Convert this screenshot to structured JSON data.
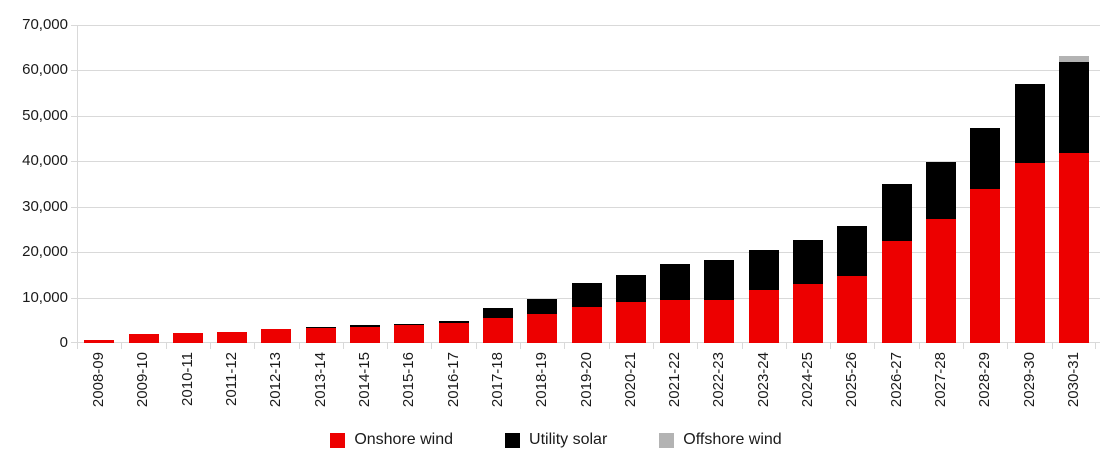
{
  "chart_data": {
    "type": "bar",
    "stacked": true,
    "title": "",
    "xlabel": "",
    "ylabel": "",
    "ylim": [
      0,
      70000
    ],
    "ytick_step": 10000,
    "grid": true,
    "legend_position": "bottom",
    "y_ticks": [
      {
        "value": 0,
        "label": "0"
      },
      {
        "value": 10000,
        "label": "10,000"
      },
      {
        "value": 20000,
        "label": "20,000"
      },
      {
        "value": 30000,
        "label": "30,000"
      },
      {
        "value": 40000,
        "label": "40,000"
      },
      {
        "value": 50000,
        "label": "50,000"
      },
      {
        "value": 60000,
        "label": "60,000"
      },
      {
        "value": 70000,
        "label": "70,000"
      }
    ],
    "categories": [
      "2008-09",
      "2009-10",
      "2010-11",
      "2011-12",
      "2012-13",
      "2013-14",
      "2014-15",
      "2015-16",
      "2016-17",
      "2017-18",
      "2018-19",
      "2019-20",
      "2020-21",
      "2021-22",
      "2022-23",
      "2023-24",
      "2024-25",
      "2025-26",
      "2026-27",
      "2027-28",
      "2028-29",
      "2029-30",
      "2030-31"
    ],
    "series": [
      {
        "name": "Onshore wind",
        "color": "#ed0000",
        "values": [
          600,
          1900,
          2200,
          2500,
          3100,
          3400,
          3500,
          3900,
          4500,
          5500,
          6300,
          7900,
          9000,
          9400,
          9500,
          11600,
          12900,
          14800,
          22500,
          27200,
          34000,
          39700,
          41900
        ]
      },
      {
        "name": "Utility solar",
        "color": "#000000",
        "values": [
          0,
          0,
          0,
          0,
          0,
          100,
          400,
          300,
          400,
          2200,
          3300,
          5300,
          6000,
          8100,
          8800,
          8900,
          9700,
          10900,
          12500,
          12600,
          13400,
          17400,
          20000
        ]
      },
      {
        "name": "Offshore wind",
        "color": "#b3b3b3",
        "values": [
          0,
          0,
          0,
          0,
          0,
          0,
          0,
          0,
          0,
          0,
          0,
          0,
          0,
          0,
          0,
          0,
          0,
          0,
          0,
          0,
          0,
          0,
          1200
        ]
      }
    ]
  }
}
